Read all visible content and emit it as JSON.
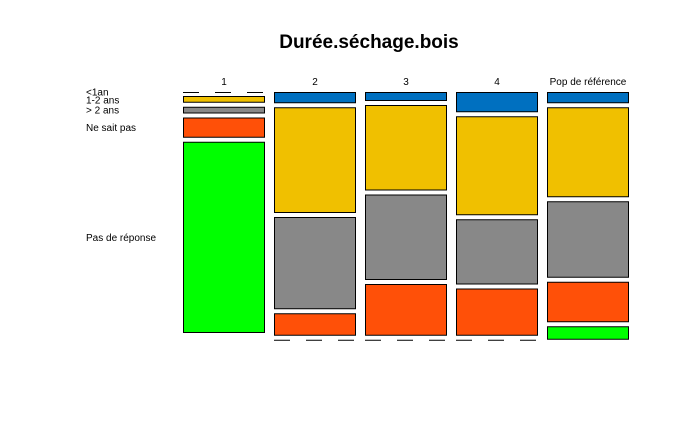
{
  "chart_data": {
    "type": "mosaic",
    "title": "Durée.séchage.bois",
    "categories": [
      "1",
      "2",
      "3",
      "4",
      "Pop de référence"
    ],
    "levels": [
      "<1an",
      "1-2 ans",
      "> 2 ans",
      "Ne sait pas",
      "Pas de réponse"
    ],
    "colors": {
      "<1an": "#0070C0",
      "1-2 ans": "#F0C000",
      "> 2 ans": "#888888",
      "Ne sait pas": "#FF5008",
      "Pas de réponse": "#00FF00"
    },
    "proportions": [
      [
        0.0,
        0.03,
        0.03,
        0.09,
        0.85
      ],
      [
        0.05,
        0.47,
        0.41,
        0.1,
        0.0
      ],
      [
        0.04,
        0.38,
        0.38,
        0.23,
        0.0
      ],
      [
        0.09,
        0.44,
        0.29,
        0.21,
        0.0
      ],
      [
        0.05,
        0.4,
        0.34,
        0.18,
        0.06
      ]
    ]
  }
}
